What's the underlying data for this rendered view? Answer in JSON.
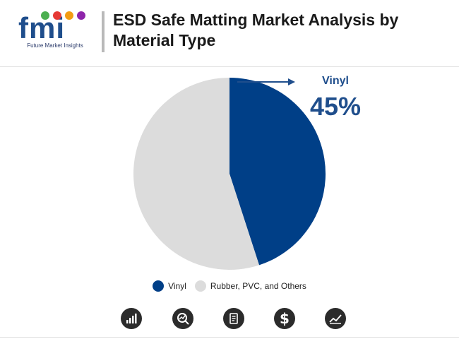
{
  "logo": {
    "wordmark": "fmi",
    "tagline": "Future Market Insights"
  },
  "header": {
    "title": "ESD Safe Matting Market Analysis by Material Type"
  },
  "chart_data": {
    "type": "pie",
    "title": "",
    "categories": [
      "Vinyl",
      "Rubber, PVC, and Others"
    ],
    "values": [
      45,
      55
    ],
    "colors": [
      "#003f87",
      "#dcdcdc"
    ],
    "callout": {
      "label": "Vinyl",
      "value": "45%"
    },
    "legend": {
      "placement": "bottom"
    }
  },
  "legend": [
    {
      "label": "Vinyl",
      "color": "#003f87"
    },
    {
      "label": "Rubber, PVC, and Others",
      "color": "#dcdcdc"
    }
  ],
  "footer_icons": [
    {
      "name": "bar-chart-icon"
    },
    {
      "name": "trend-analysis-icon"
    },
    {
      "name": "report-document-icon"
    },
    {
      "name": "dollar-icon",
      "glyph": "$"
    },
    {
      "name": "line-chart-icon"
    }
  ]
}
